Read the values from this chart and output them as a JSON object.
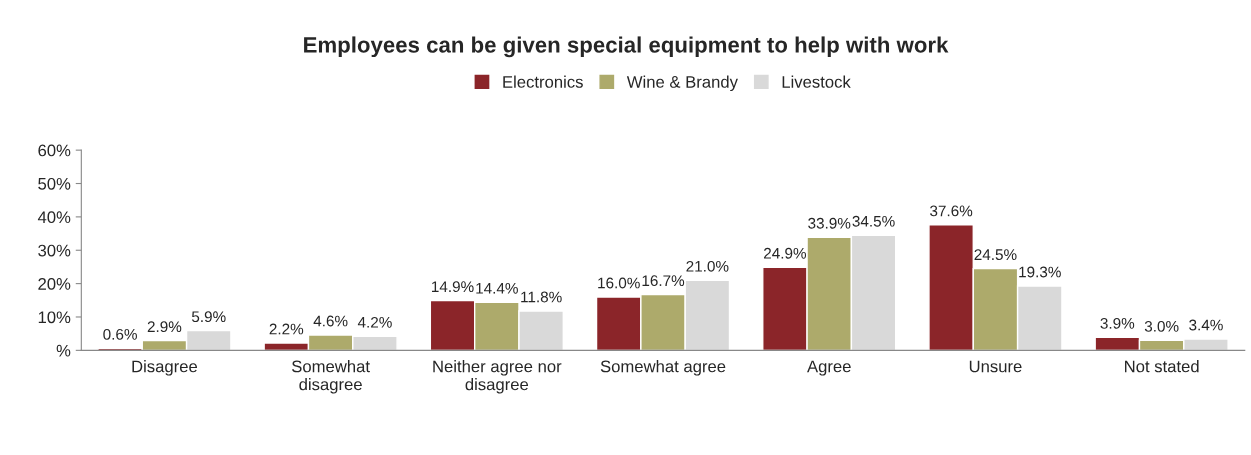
{
  "chart_data": {
    "type": "bar",
    "title": "Employees can be given special equipment to help with work",
    "categories": [
      "Disagree",
      "Somewhat\ndisagree",
      "Neither agree nor\ndisagree",
      "Somewhat agree",
      "Agree",
      "Unsure",
      "Not stated"
    ],
    "series": [
      {
        "name": "Electronics",
        "color": "#8b2529",
        "values": [
          0.6,
          2.2,
          14.9,
          16.0,
          24.9,
          37.6,
          3.9
        ],
        "value_labels": [
          "0.6%",
          "2.2%",
          "14.9%",
          "16.0%",
          "24.9%",
          "37.6%",
          "3.9%"
        ]
      },
      {
        "name": "Wine & Brandy",
        "color": "#adaa6b",
        "values": [
          2.9,
          4.6,
          14.4,
          16.7,
          33.9,
          24.5,
          3.0
        ],
        "value_labels": [
          "2.9%",
          "4.6%",
          "14.4%",
          "16.7%",
          "33.9%",
          "24.5%",
          "3.0%"
        ]
      },
      {
        "name": "Livestock",
        "color": "#d9d9d9",
        "values": [
          5.9,
          4.2,
          11.8,
          21.0,
          34.5,
          19.3,
          3.4
        ],
        "value_labels": [
          "5.9%",
          "4.2%",
          "11.8%",
          "21.0%",
          "34.5%",
          "19.3%",
          "3.4%"
        ]
      }
    ],
    "ylim": [
      0,
      60
    ],
    "yticks": [
      {
        "value": 0,
        "label": "%"
      },
      {
        "value": 10,
        "label": "10%"
      },
      {
        "value": 20,
        "label": "20%"
      },
      {
        "value": 30,
        "label": "30%"
      },
      {
        "value": 40,
        "label": "40%"
      },
      {
        "value": 50,
        "label": "50%"
      },
      {
        "value": 60,
        "label": "60%"
      }
    ],
    "grid": false,
    "legend": "top"
  }
}
